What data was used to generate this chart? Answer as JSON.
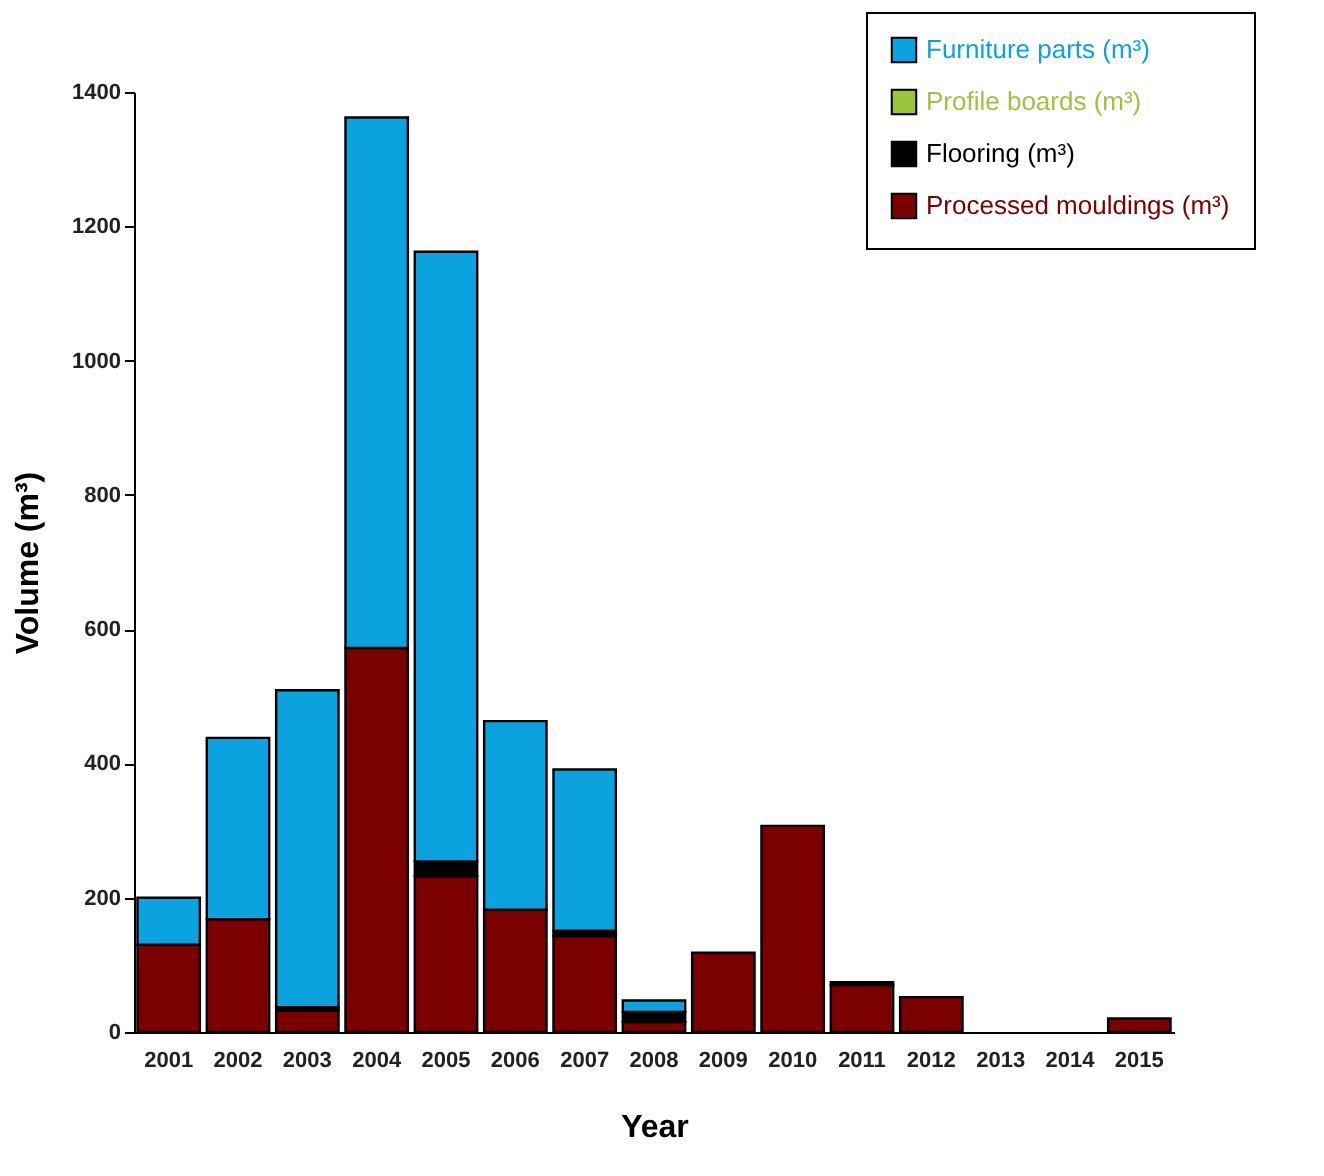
{
  "chart_data": {
    "type": "bar",
    "stacked": true,
    "xlabel": "Year",
    "ylabel": "Volume (m³)",
    "categories": [
      "2001",
      "2002",
      "2003",
      "2004",
      "2005",
      "2006",
      "2007",
      "2008",
      "2009",
      "2010",
      "2011",
      "2012",
      "2013",
      "2014",
      "2015"
    ],
    "series": [
      {
        "name": "Processed mouldings (m³)",
        "color": "#7b0000",
        "values": [
          130,
          168,
          32,
          572,
          232,
          182,
          143,
          15,
          118,
          307,
          70,
          52,
          0,
          0,
          20
        ]
      },
      {
        "name": "Flooring (m³)",
        "color": "#000000",
        "values": [
          null,
          null,
          5,
          null,
          22,
          null,
          8,
          15,
          0,
          0,
          4,
          0,
          0,
          0,
          0
        ]
      },
      {
        "name": "Profile boards (m³)",
        "color": "#9bc53d",
        "values": [
          0,
          0,
          0,
          0,
          0,
          0,
          0,
          0,
          0,
          0,
          0,
          0,
          0,
          0,
          0
        ]
      },
      {
        "name": "Furniture parts (m³)",
        "color": "#0aa3e0",
        "values": [
          70,
          270,
          472,
          790,
          908,
          281,
          240,
          17,
          0,
          0,
          0,
          0,
          0,
          0,
          0
        ]
      }
    ],
    "ylim": [
      0,
      1400
    ],
    "yticks": [
      0,
      200,
      400,
      600,
      800,
      1000,
      1200,
      1400
    ],
    "grid": false,
    "legend": "top right"
  }
}
